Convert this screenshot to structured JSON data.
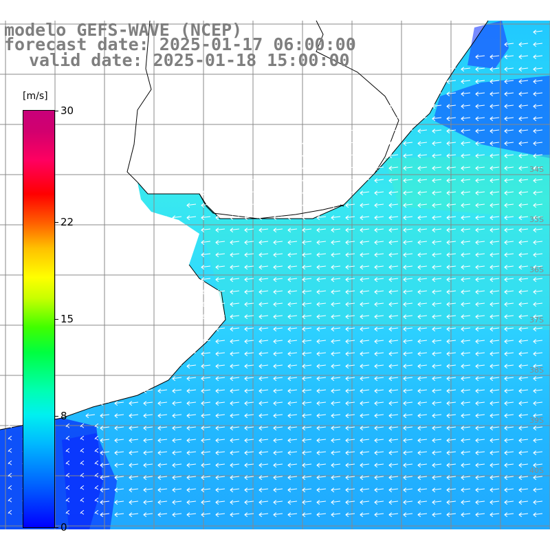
{
  "title": {
    "line1": "modelo GEFS-WAVE (NCEP)",
    "line2": "forecast date: 2025-01-17 06:00:00",
    "line3": "valid date: 2025-01-18 15:00:00"
  },
  "colorbar": {
    "units": "[m/s]",
    "ticks": [
      "30",
      "22",
      "15",
      "8",
      "0"
    ],
    "tick_values": [
      30,
      22,
      15,
      8,
      0
    ],
    "min": 0,
    "max": 30
  },
  "lat_labels": [
    "34S",
    "35S",
    "36S",
    "37S",
    "38S",
    "39S",
    "40S"
  ],
  "map": {
    "land_color": "#ffffff",
    "grid_color": "#808080",
    "coast_color": "#000000",
    "arrow_color": "#ffffff"
  }
}
